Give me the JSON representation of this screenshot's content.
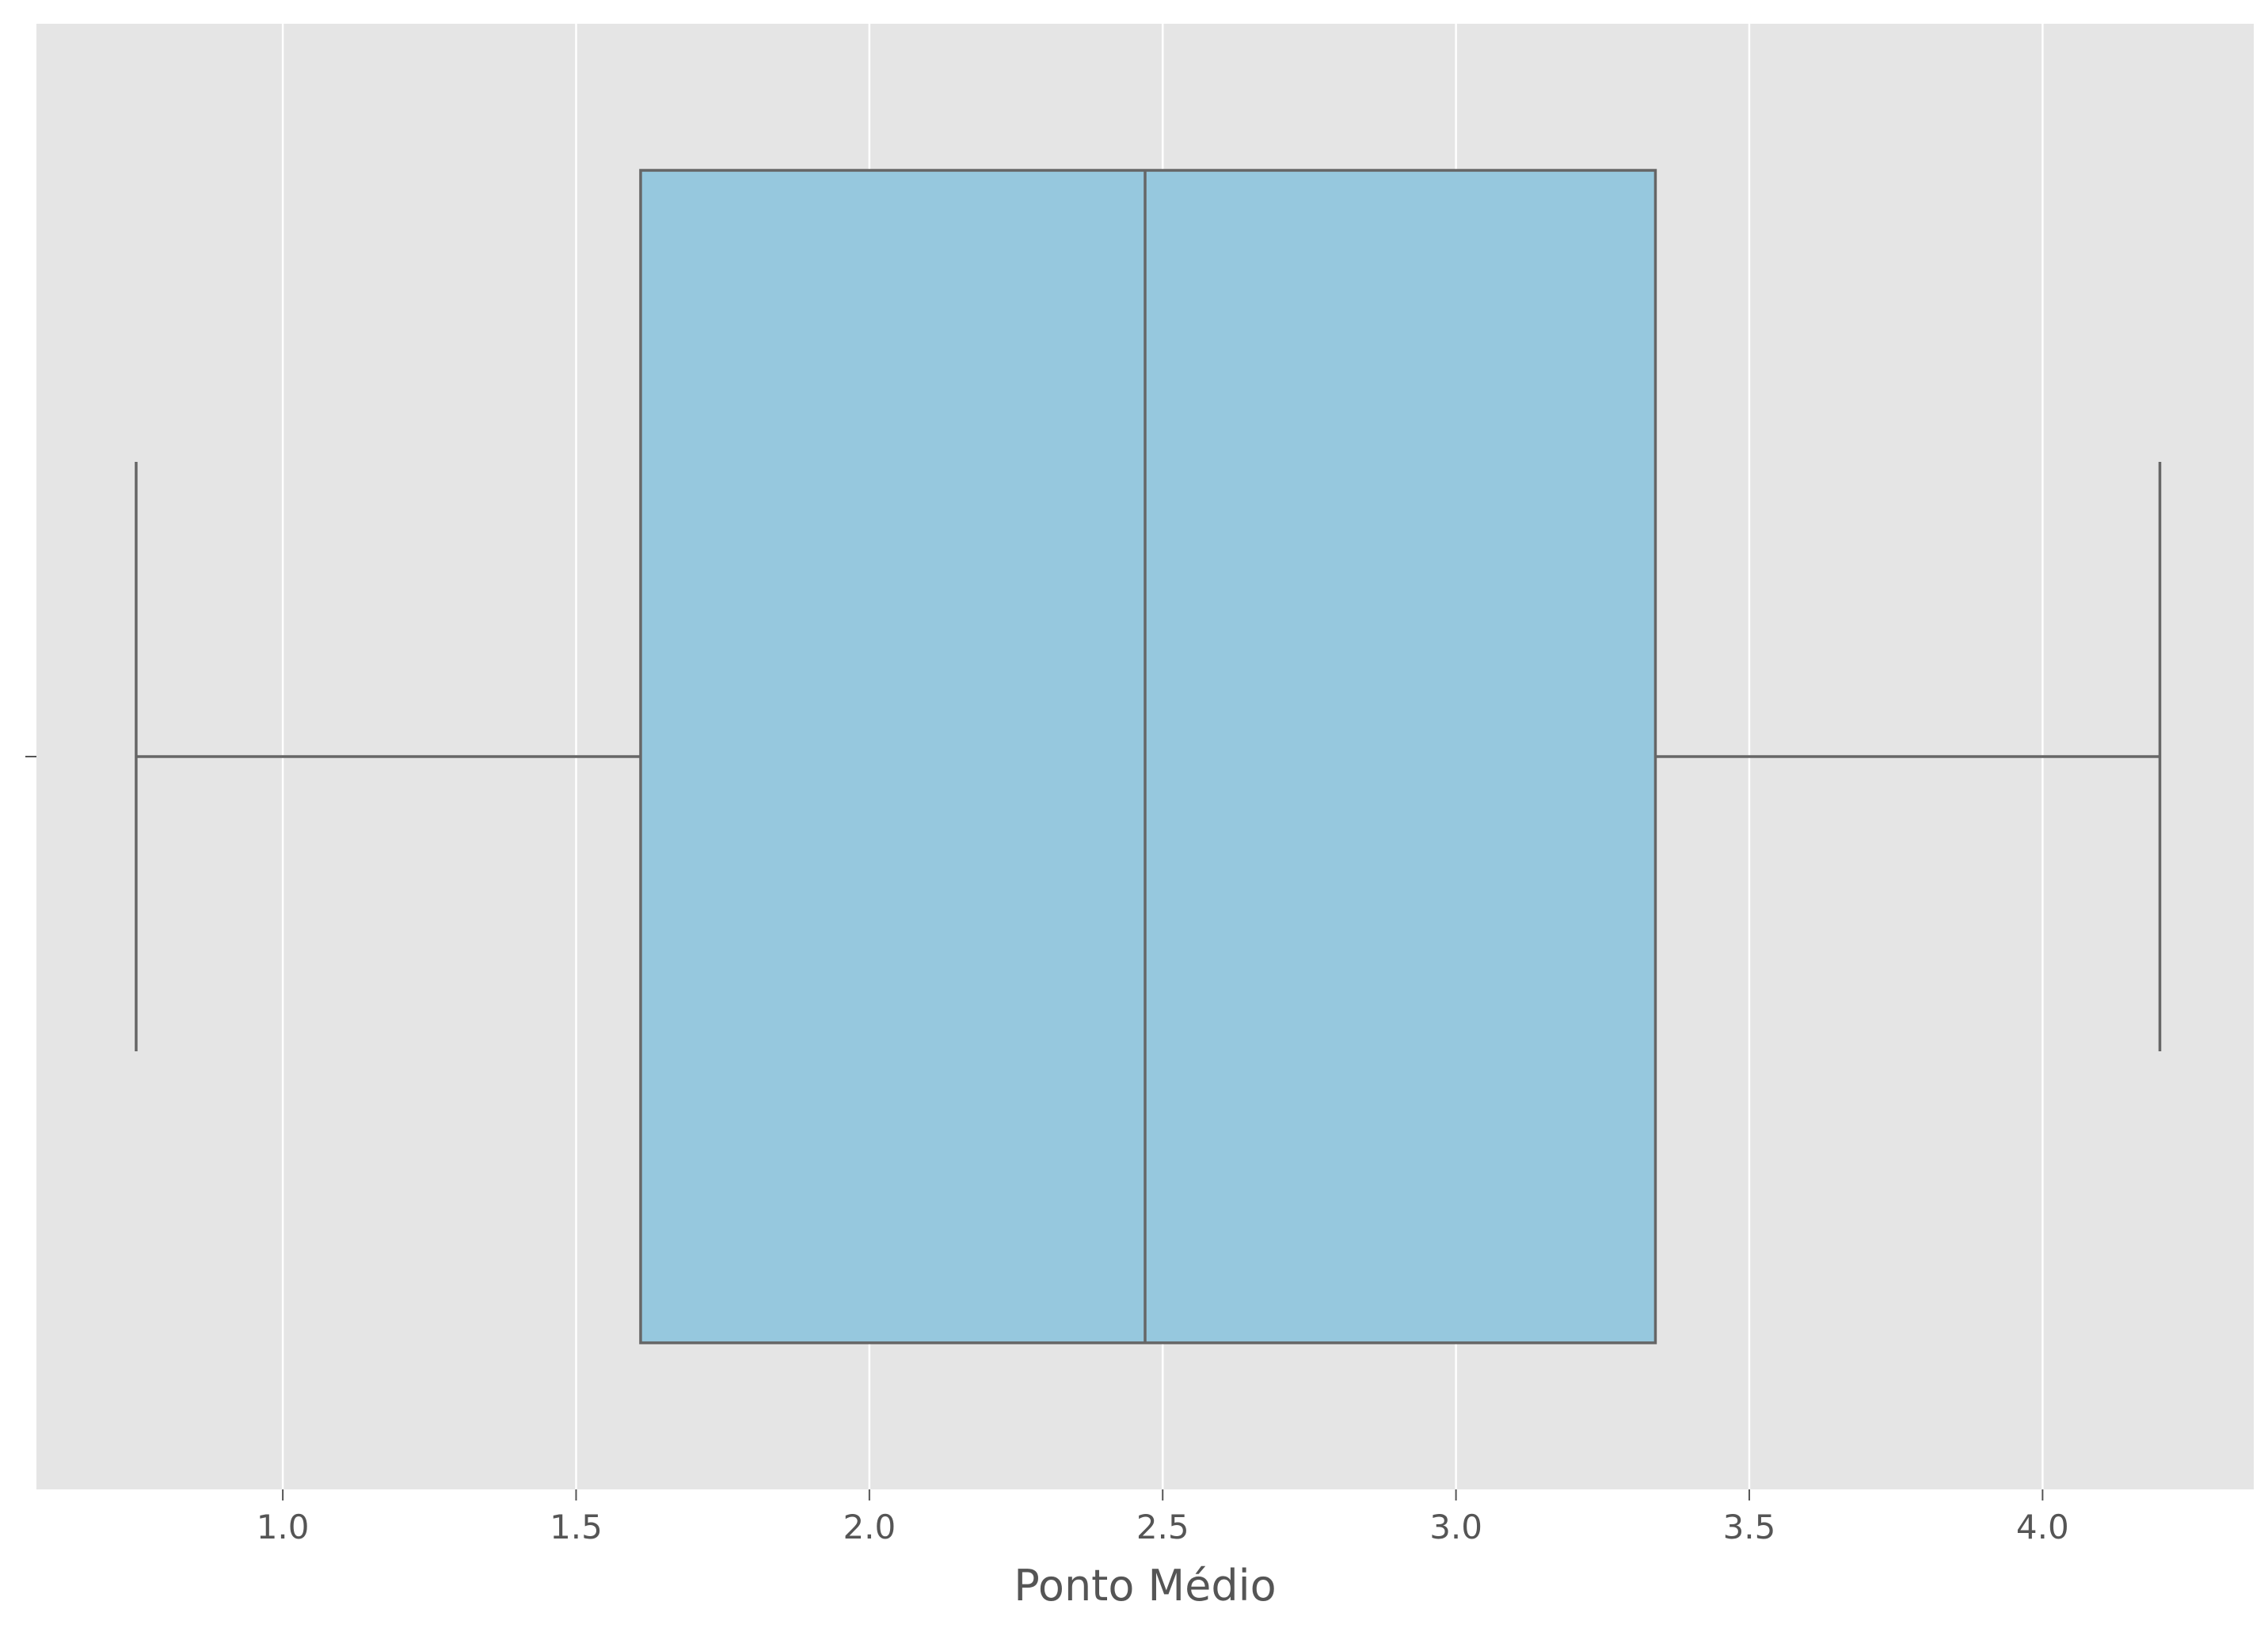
{
  "chart_data": {
    "type": "box",
    "orientation": "horizontal",
    "xlabel": "Ponto Médio",
    "ylabel": "",
    "title": "",
    "xlim": [
      0.58,
      4.36
    ],
    "xticks": [
      1.0,
      1.5,
      2.0,
      2.5,
      3.0,
      3.5,
      4.0
    ],
    "xtick_labels": [
      "1.0",
      "1.5",
      "2.0",
      "2.5",
      "3.0",
      "3.5",
      "4.0"
    ],
    "grid": true,
    "box": {
      "whisker_low": 0.75,
      "q1": 1.61,
      "median": 2.47,
      "q3": 3.34,
      "whisker_high": 4.2
    },
    "colors": {
      "plot_background": "#e5e5e5",
      "grid": "#ffffff",
      "box_fill": "#96c8de",
      "box_edge": "#666666"
    }
  }
}
